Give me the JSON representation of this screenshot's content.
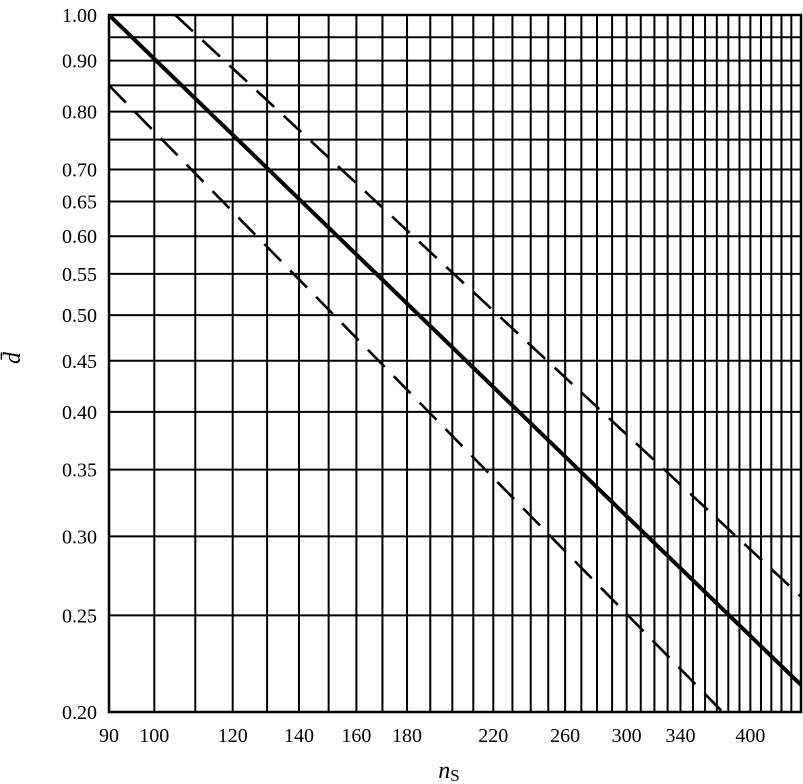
{
  "chart_data": {
    "type": "line",
    "title": "",
    "xlabel_main": "n",
    "xlabel_sub": "S",
    "ylabel": "d̄",
    "x_scale": "log",
    "y_scale": "log",
    "xlim": [
      90,
      450
    ],
    "ylim": [
      0.2,
      1.0
    ],
    "grid": true,
    "x_ticks": [
      90,
      100,
      120,
      140,
      160,
      180,
      220,
      260,
      300,
      340,
      400
    ],
    "x_tick_labels": [
      "90",
      "100",
      "120",
      "140",
      "160",
      "180",
      "220",
      "260",
      "300",
      "340",
      "400"
    ],
    "x_gridlines": [
      90,
      100,
      110,
      120,
      130,
      140,
      150,
      160,
      170,
      180,
      190,
      200,
      210,
      220,
      230,
      240,
      250,
      260,
      270,
      280,
      290,
      300,
      310,
      320,
      330,
      340,
      350,
      360,
      370,
      380,
      390,
      400,
      410,
      420,
      430,
      440
    ],
    "y_ticks": [
      0.2,
      0.25,
      0.3,
      0.35,
      0.4,
      0.45,
      0.5,
      0.55,
      0.6,
      0.65,
      0.7,
      0.8,
      0.9,
      1.0
    ],
    "y_tick_labels": [
      "0.20",
      "0.25",
      "0.30",
      "0.35",
      "0.40",
      "0.45",
      "0.50",
      "0.55",
      "0.60",
      "0.65",
      "0.70",
      "0.80",
      "0.90",
      "1.00"
    ],
    "y_gridlines": [
      0.2,
      0.25,
      0.3,
      0.35,
      0.4,
      0.45,
      0.5,
      0.55,
      0.6,
      0.65,
      0.7,
      0.75,
      0.8,
      0.85,
      0.9,
      0.95,
      1.0
    ],
    "series": [
      {
        "style": "solid",
        "x": [
          90,
          452
        ],
        "y": [
          1.0,
          0.212
        ]
      },
      {
        "style": "dashed",
        "x": [
          105,
          452
        ],
        "y": [
          1.0,
          0.26
        ]
      },
      {
        "style": "dashed",
        "x": [
          90,
          375
        ],
        "y": [
          0.85,
          0.2
        ]
      }
    ]
  }
}
